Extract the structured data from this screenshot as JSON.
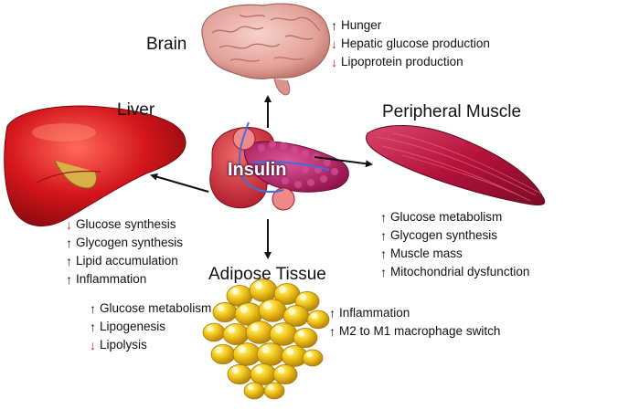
{
  "organs": {
    "brain": {
      "title": "Brain",
      "effects": [
        {
          "direction": "up",
          "text": "Hunger"
        },
        {
          "direction": "down",
          "text": "Hepatic glucose production"
        },
        {
          "direction": "down",
          "text": "Lipoprotein production"
        }
      ]
    },
    "liver": {
      "title": "Liver",
      "effects": [
        {
          "direction": "down",
          "text": "Glucose synthesis"
        },
        {
          "direction": "up",
          "text": "Glycogen synthesis"
        },
        {
          "direction": "up",
          "text": "Lipid accumulation"
        },
        {
          "direction": "up",
          "text": "Inflammation"
        }
      ]
    },
    "muscle": {
      "title": "Peripheral Muscle",
      "effects": [
        {
          "direction": "up",
          "text": "Glucose metabolism"
        },
        {
          "direction": "up",
          "text": "Glycogen synthesis"
        },
        {
          "direction": "up",
          "text": "Muscle mass"
        },
        {
          "direction": "up",
          "text": "Mitochondrial dysfunction"
        }
      ]
    },
    "adipose": {
      "title": "Adipose Tissue",
      "effects_left": [
        {
          "direction": "up",
          "text": "Glucose metabolism"
        },
        {
          "direction": "up",
          "text": "Lipogenesis"
        },
        {
          "direction": "down",
          "text": "Lipolysis"
        }
      ],
      "effects_right": [
        {
          "direction": "up",
          "text": "Inflammation"
        },
        {
          "direction": "up",
          "text": "M2 to M1 macrophage switch"
        }
      ]
    }
  },
  "center": {
    "label": "Insulin"
  },
  "colors": {
    "increase_arrow": "#111111",
    "decrease_arrow": "#d0202a",
    "liver": "#d4161c",
    "muscle": "#b5123a",
    "adipose": "#f2c21a",
    "brain": "#e9b0a8",
    "pancreas": "#b92063"
  }
}
